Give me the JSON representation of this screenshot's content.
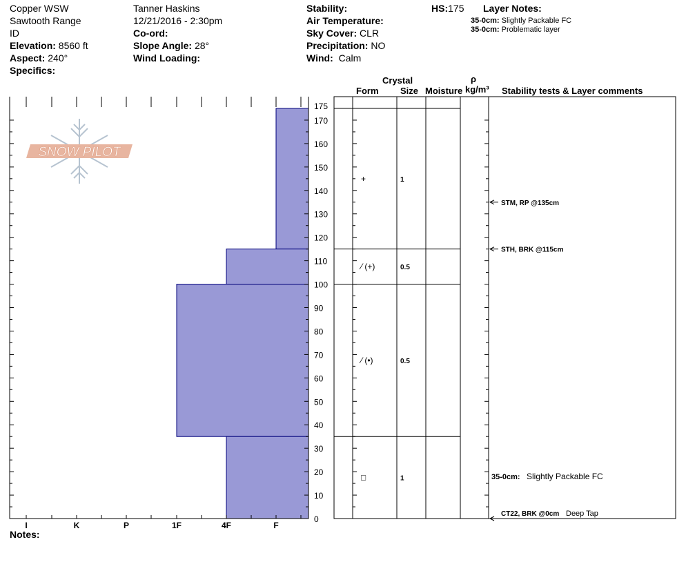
{
  "site": {
    "name": "Copper WSW",
    "range": "Sawtooth Range",
    "state": "ID",
    "elevation_label": "Elevation:",
    "elevation": "8560 ft",
    "aspect_label": "Aspect:",
    "aspect": "240°",
    "specifics_label": "Specifics:"
  },
  "observer": {
    "name": "Tanner Haskins",
    "datetime": "12/21/2016 - 2:30pm",
    "coord_label": "Co-ord:",
    "slope_label": "Slope Angle:",
    "slope": "28°",
    "wind_loading_label": "Wind Loading:"
  },
  "conditions": {
    "stability_label": "Stability:",
    "air_temp_label": "Air Temperature:",
    "sky_label": "Sky Cover:",
    "sky": "CLR",
    "precip_label": "Precipitation:",
    "precip": "NO",
    "wind_label": "Wind:",
    "wind": "Calm"
  },
  "hs": {
    "label": "HS:",
    "value": "175"
  },
  "layer_notes": {
    "title": "Layer Notes:",
    "items": [
      {
        "range": "35-0cm:",
        "text": "Slightly Packable FC"
      },
      {
        "range": "35-0cm:",
        "text": "Problematic layer"
      }
    ]
  },
  "columns": {
    "crystal": "Crystal",
    "form": "Form",
    "size": "Size",
    "moisture": "Moisture",
    "rho": "ρ",
    "density_unit": "kg/m³",
    "stability": "Stability tests & Layer comments"
  },
  "logo": {
    "text": "SNOW PILOT"
  },
  "notes_label": "Notes:",
  "chart_data": {
    "type": "bar",
    "orientation": "horizontal",
    "y_range": [
      0,
      175
    ],
    "y_ticks": [
      "0",
      "10",
      "20",
      "30",
      "40",
      "50",
      "60",
      "70",
      "80",
      "90",
      "100",
      "110",
      "120",
      "130",
      "140",
      "150",
      "160",
      "170",
      "175"
    ],
    "x_categories": [
      "I",
      "K",
      "P",
      "1F",
      "4F",
      "F"
    ],
    "layers": [
      {
        "top": 175,
        "bottom": 115,
        "hardness": "F"
      },
      {
        "top": 115,
        "bottom": 100,
        "hardness": "4F"
      },
      {
        "top": 100,
        "bottom": 35,
        "hardness": "1F"
      },
      {
        "top": 35,
        "bottom": 0,
        "hardness": "4F"
      }
    ],
    "crystals": [
      {
        "top": 175,
        "bottom": 115,
        "form": "+",
        "size": "1"
      },
      {
        "top": 115,
        "bottom": 100,
        "form": "⁄ (+)",
        "size": "0.5"
      },
      {
        "top": 100,
        "bottom": 35,
        "form": "⁄ (•)",
        "size": "0.5"
      },
      {
        "top": 35,
        "bottom": 0,
        "form": "□",
        "size": "1"
      }
    ],
    "stability_tests": [
      {
        "depth": 135,
        "label": "STM, RP @135cm"
      },
      {
        "depth": 115,
        "label": "STH, BRK @115cm"
      },
      {
        "depth": 0,
        "label": "CT22, BRK @0cm",
        "comment": "Deep Tap"
      }
    ],
    "layer_comments": [
      {
        "depth": 18,
        "range": "35-0cm:",
        "text": "Slightly Packable FC"
      }
    ],
    "colors": {
      "fill": "#9999d6",
      "stroke": "#00007a",
      "logo": "#e8b5a0",
      "logo_flake": "#b6c3d0"
    }
  }
}
